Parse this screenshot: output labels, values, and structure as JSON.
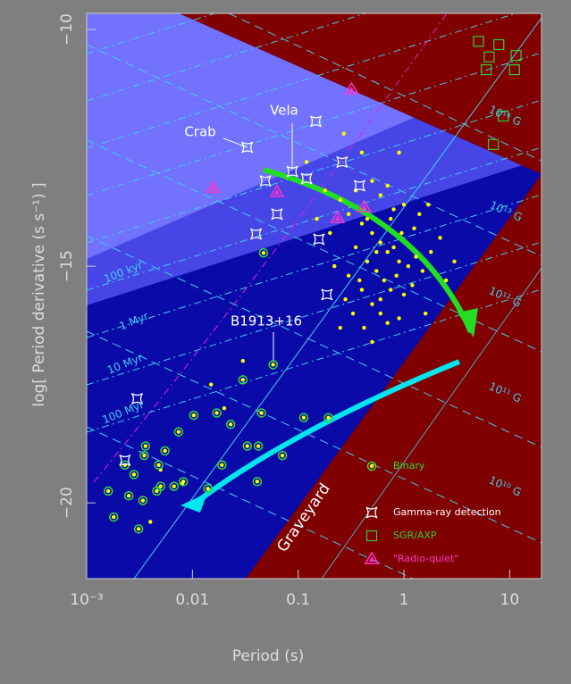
{
  "chart_data": {
    "type": "scatter",
    "xlabel": "Period (s)",
    "ylabel": "log[ Period derivative (s s⁻¹) ]",
    "xlog": true,
    "xlim": [
      0.001,
      20
    ],
    "ylim": [
      -21.6,
      -9.66
    ],
    "xticks": [
      {
        "value": 0.001,
        "label": "10⁻³"
      },
      0.01,
      0.1,
      1,
      10
    ],
    "yticks": [
      {
        "value": -10,
        "label": "−10"
      },
      {
        "value": -15,
        "label": "−15"
      },
      {
        "value": -20,
        "label": "−20"
      }
    ],
    "annotations": [
      "Crab",
      "Vela",
      "B1913+16",
      "100 kyr",
      "1 Myr",
      "10 Myr",
      "100 Myr",
      "10¹⁴ G",
      "10¹³ G",
      "10¹² G",
      "10¹¹ G",
      "10¹⁰ G",
      "Graveyard"
    ],
    "series": [
      {
        "color": "#ffff00",
        "marker": "dot",
        "x": [
          0.25,
          0.3,
          0.4,
          0.5,
          0.6,
          0.7,
          0.8,
          0.9,
          1.1,
          1.3,
          0.35,
          0.45,
          0.55,
          0.65,
          0.75,
          0.85,
          1.0,
          1.2,
          1.5,
          1.8,
          2.2,
          0.3,
          0.4,
          0.5,
          0.6,
          0.7,
          0.9,
          0.2,
          0.18,
          0.22,
          0.28,
          0.33,
          1.4,
          1.0,
          0.8,
          0.6,
          2.5,
          3.0,
          0.5,
          0.4,
          0.15,
          0.12,
          0.9,
          1.6,
          0.25,
          0.5,
          0.45,
          0.55,
          0.38,
          0.95,
          1.25,
          0.7,
          0.35,
          0.27,
          0.6,
          0.75,
          1.7,
          0.42,
          0.03,
          0.02,
          0.015,
          0.005,
          0.004,
          0.008
        ],
        "y": [
          -13.6,
          -13.9,
          -14.1,
          -14.3,
          -14.5,
          -14.7,
          -14.6,
          -14.9,
          -15.0,
          -14.8,
          -14.6,
          -14.9,
          -15.1,
          -15.3,
          -15.5,
          -15.2,
          -15.6,
          -15.4,
          -15.1,
          -14.7,
          -14.4,
          -15.2,
          -15.5,
          -15.8,
          -16.0,
          -16.2,
          -16.1,
          -14.3,
          -13.4,
          -15.0,
          -15.7,
          -16.0,
          -13.9,
          -13.7,
          -13.8,
          -13.5,
          -15.3,
          -14.9,
          -13.2,
          -12.6,
          -14.0,
          -12.8,
          -12.6,
          -16.0,
          -16.3,
          -16.6,
          -14.0,
          -14.7,
          -15.3,
          -14.3,
          -14.2,
          -13.3,
          -13.4,
          -12.2,
          -15.7,
          -14.0,
          -13.7,
          -16.3,
          -17.0,
          -18.0,
          -17.5,
          -19.3,
          -20.4,
          -19.6
        ]
      },
      {
        "name": "Binary",
        "color": "#33dd33",
        "marker": "circle-dot",
        "x": [
          0.047,
          0.058,
          0.03,
          0.023,
          0.045,
          0.017,
          0.113,
          0.193,
          0.033,
          0.042,
          0.071,
          0.019,
          0.014,
          0.0074,
          0.0103,
          0.0055,
          0.0036,
          0.0035,
          0.0048,
          0.0082,
          0.0067,
          0.0028,
          0.0016,
          0.0025,
          0.0034,
          0.0046,
          0.0018,
          0.0031,
          0.005,
          0.0023,
          0.041
        ],
        "y": [
          -14.72,
          -17.08,
          -17.4,
          -18.34,
          -18.1,
          -18.1,
          -18.2,
          -18.2,
          -18.8,
          -18.8,
          -19.0,
          -19.2,
          -19.7,
          -18.5,
          -18.15,
          -18.9,
          -18.8,
          -19.0,
          -19.2,
          -19.55,
          -19.65,
          -19.4,
          -19.75,
          -19.85,
          -19.95,
          -19.75,
          -20.3,
          -20.55,
          -19.65,
          -19.2,
          -19.55
        ]
      },
      {
        "name": "Gamma-ray detection",
        "color": "#ffffff",
        "marker": "square-corner",
        "x": [
          0.033,
          0.088,
          0.147,
          0.26,
          0.049,
          0.12,
          0.38,
          0.063,
          0.04,
          0.157,
          0.187,
          0.003,
          0.0023
        ],
        "y": [
          -12.49,
          -13.0,
          -11.94,
          -12.8,
          -13.2,
          -13.15,
          -13.3,
          -13.9,
          -14.32,
          -14.43,
          -15.6,
          -17.8,
          -19.1
        ]
      },
      {
        "name": "SGR/AXP",
        "color": "#33cc33",
        "marker": "square",
        "x": [
          5.07,
          7.9,
          11.5,
          6.4,
          11.1,
          6.0,
          8.7,
          7.0
        ],
        "y": [
          -10.25,
          -10.32,
          -10.55,
          -10.58,
          -10.85,
          -10.85,
          -11.83,
          -12.43
        ]
      },
      {
        "name": "\"Radio-quiet\"",
        "color": "#ff33cc",
        "marker": "triangle",
        "x": [
          0.32,
          0.0157,
          0.063,
          0.236,
          0.42
        ],
        "y": [
          -11.26,
          -13.34,
          -13.43,
          -13.98,
          -13.75
        ]
      }
    ]
  }
}
